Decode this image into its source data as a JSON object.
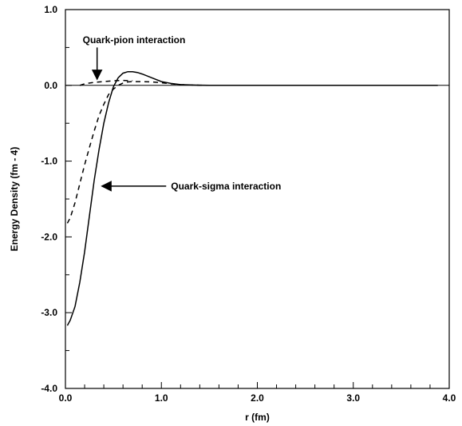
{
  "chart_data": {
    "type": "line",
    "xlabel": "r (fm)",
    "ylabel": "Energy Density (fm - 4)",
    "xlim": [
      0,
      4
    ],
    "ylim": [
      -4,
      1
    ],
    "xticks": [
      0,
      1,
      2,
      3,
      4
    ],
    "xtick_labels": [
      "0.0",
      "1.0",
      "2.0",
      "3.0",
      "4.0"
    ],
    "yticks": [
      1,
      0,
      -1,
      -2,
      -3,
      -4
    ],
    "ytick_labels": [
      "1.0",
      "0.0",
      "-1.0",
      "-2.0",
      "-3.0",
      "-4.0"
    ],
    "grid": false,
    "series": [
      {
        "style": "solid",
        "color": "#000000",
        "x": [
          0.02,
          0.05,
          0.1,
          0.15,
          0.2,
          0.25,
          0.3,
          0.35,
          0.4,
          0.45,
          0.5,
          0.55,
          0.6,
          0.65,
          0.7,
          0.75,
          0.8,
          0.9,
          1.0,
          1.1,
          1.2,
          1.3,
          1.4,
          1.5,
          1.6,
          1.8,
          2.0,
          2.5,
          3.0,
          3.5,
          3.88
        ],
        "y": [
          -3.17,
          -3.1,
          -2.92,
          -2.6,
          -2.2,
          -1.72,
          -1.25,
          -0.85,
          -0.5,
          -0.23,
          -0.02,
          0.1,
          0.16,
          0.18,
          0.18,
          0.17,
          0.15,
          0.1,
          0.05,
          0.025,
          0.01,
          0.005,
          0.002,
          0,
          0,
          0,
          0,
          0,
          0,
          0,
          0
        ]
      },
      {
        "style": "dashed",
        "color": "#000000",
        "x": [
          0.02,
          0.05,
          0.1,
          0.15,
          0.2,
          0.25,
          0.3,
          0.35,
          0.4,
          0.45,
          0.5,
          0.55,
          0.6,
          0.65,
          0.7,
          0.8,
          0.9,
          1.0,
          1.1,
          1.2,
          1.3,
          1.4,
          1.5,
          2.0,
          2.5,
          3.0,
          3.5,
          3.88
        ],
        "y": [
          -1.82,
          -1.75,
          -1.55,
          -1.3,
          -1.05,
          -0.82,
          -0.6,
          -0.4,
          -0.25,
          -0.12,
          -0.05,
          0.0,
          0.03,
          0.045,
          0.05,
          0.05,
          0.045,
          0.035,
          0.02,
          0.01,
          0.005,
          0.002,
          0,
          0,
          0,
          0,
          0,
          0
        ]
      },
      {
        "style": "dashed-upper",
        "color": "#000000",
        "x": [
          0.15,
          0.2,
          0.3,
          0.4,
          0.5,
          0.6,
          0.7
        ],
        "y": [
          0.0,
          0.02,
          0.04,
          0.05,
          0.06,
          0.065,
          0.06
        ]
      }
    ],
    "annotations": [
      {
        "text": "Quark-pion interaction",
        "text_x": 0.18,
        "text_y": 0.6,
        "arrow_from": [
          0.33,
          0.5
        ],
        "arrow_to": [
          0.33,
          0.08
        ],
        "anchor": "start"
      },
      {
        "text": "Quark-sigma interaction",
        "text_x": 1.1,
        "text_y": -1.33,
        "arrow_from": [
          1.05,
          -1.33
        ],
        "arrow_to": [
          0.38,
          -1.33
        ],
        "anchor": "start"
      }
    ]
  }
}
